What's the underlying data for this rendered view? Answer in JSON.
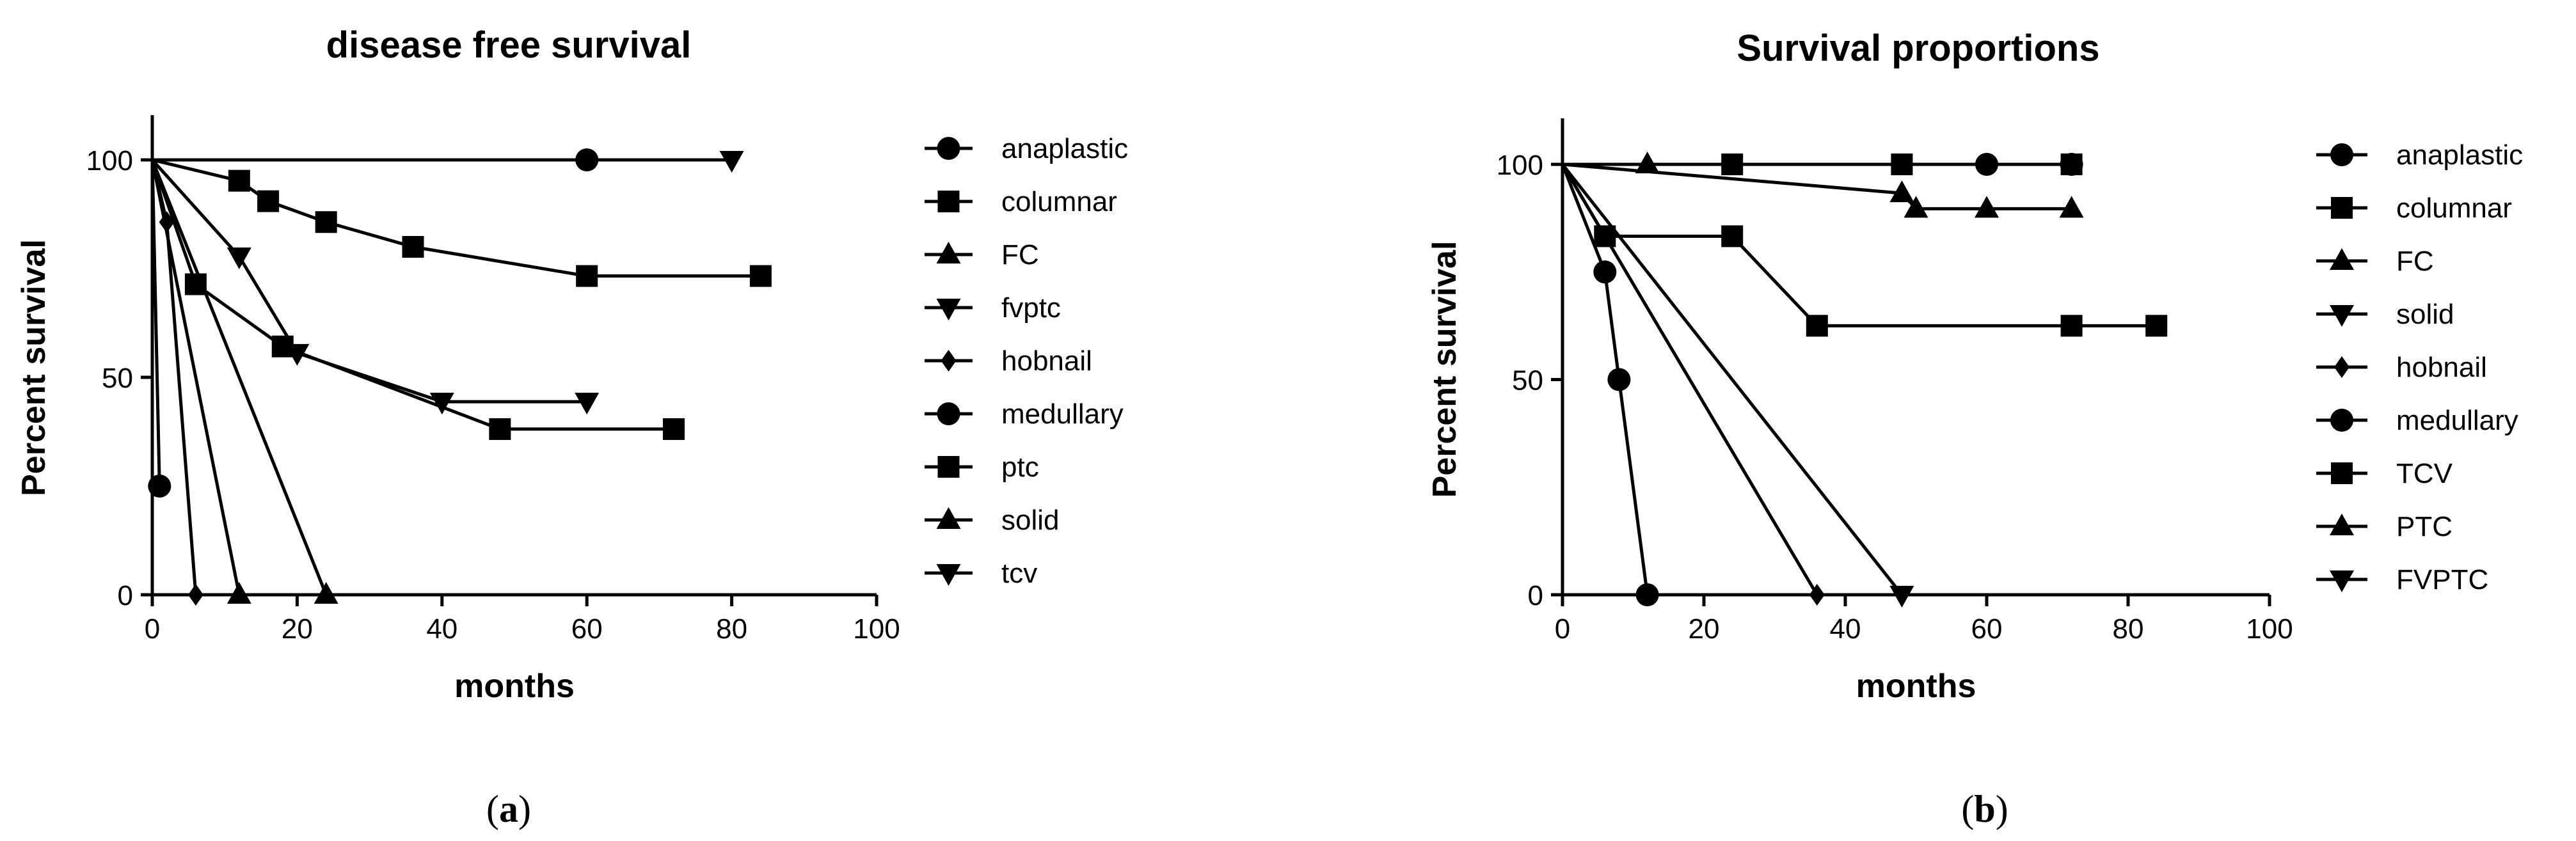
{
  "chart_data": [
    {
      "type": "line",
      "subtype": "kaplan-meier",
      "title": "disease free survival",
      "xlabel": "months",
      "ylabel": "Percent survival",
      "xlim": [
        0,
        100
      ],
      "ylim": [
        0,
        110
      ],
      "xticks": [
        0,
        20,
        40,
        60,
        80,
        100
      ],
      "yticks": [
        0,
        50,
        100
      ],
      "grid": false,
      "legend_position": "right",
      "caption": "a",
      "series": [
        {
          "name": "anaplastic",
          "marker": "circle",
          "x": [
            0,
            1
          ],
          "y": [
            100,
            25
          ]
        },
        {
          "name": "columnar",
          "marker": "square",
          "x": [
            0,
            6,
            18,
            48,
            72
          ],
          "y": [
            100,
            71.4,
            57.1,
            38.1,
            38.1
          ]
        },
        {
          "name": "FC",
          "marker": "triangle-up",
          "x": [
            0,
            12
          ],
          "y": [
            100,
            0
          ]
        },
        {
          "name": "fvptc",
          "marker": "triangle-down",
          "x": [
            0,
            12,
            20,
            40,
            60
          ],
          "y": [
            100,
            77.8,
            55.6,
            44.4,
            44.4
          ]
        },
        {
          "name": "hobnail",
          "marker": "diamond",
          "x": [
            0,
            2,
            6
          ],
          "y": [
            100,
            85.7,
            0
          ]
        },
        {
          "name": "medullary",
          "marker": "circle",
          "x": [
            0,
            60
          ],
          "y": [
            100,
            100
          ]
        },
        {
          "name": "ptc",
          "marker": "square",
          "x": [
            0,
            12,
            16,
            24,
            36,
            60,
            84
          ],
          "y": [
            100,
            95.2,
            90.5,
            85.7,
            80,
            73.3,
            73.3
          ]
        },
        {
          "name": "solid",
          "marker": "triangle-up",
          "x": [
            0,
            24
          ],
          "y": [
            100,
            0
          ]
        },
        {
          "name": "tcv",
          "marker": "triangle-down",
          "x": [
            0,
            80
          ],
          "y": [
            100,
            100
          ]
        }
      ]
    },
    {
      "type": "line",
      "subtype": "kaplan-meier",
      "title": "Survival proportions",
      "xlabel": "months",
      "ylabel": "Percent survival",
      "xlim": [
        0,
        100
      ],
      "ylim": [
        0,
        110
      ],
      "xticks": [
        0,
        20,
        40,
        60,
        80,
        100
      ],
      "yticks": [
        0,
        50,
        100
      ],
      "grid": false,
      "legend_position": "right",
      "caption": "b",
      "series": [
        {
          "name": "anaplastic",
          "marker": "circle",
          "x": [
            0,
            6,
            8,
            12
          ],
          "y": [
            100,
            75,
            50,
            0
          ]
        },
        {
          "name": "columnar",
          "marker": "square",
          "x": [
            0,
            6,
            24,
            36,
            72,
            84
          ],
          "y": [
            100,
            83.3,
            83.3,
            62.5,
            62.5,
            62.5
          ]
        },
        {
          "name": "FC",
          "marker": "triangle-up",
          "x": [
            0,
            12
          ],
          "y": [
            100,
            100
          ]
        },
        {
          "name": "solid",
          "marker": "triangle-down",
          "x": [
            0
          ],
          "y": [
            100
          ]
        },
        {
          "name": "hobnail",
          "marker": "diamond",
          "x": [
            0,
            36
          ],
          "y": [
            100,
            0
          ]
        },
        {
          "name": "medullary",
          "marker": "circle",
          "x": [
            0,
            60,
            72
          ],
          "y": [
            100,
            100,
            100
          ]
        },
        {
          "name": "TCV",
          "marker": "square",
          "x": [
            0,
            24,
            48,
            72
          ],
          "y": [
            100,
            100,
            100,
            100
          ]
        },
        {
          "name": "PTC",
          "marker": "triangle-up",
          "x": [
            0,
            48,
            50,
            60,
            72
          ],
          "y": [
            100,
            93.3,
            89.7,
            89.7,
            89.7
          ]
        },
        {
          "name": "FVPTC",
          "marker": "triangle-down",
          "x": [
            0,
            48
          ],
          "y": [
            100,
            0
          ]
        }
      ]
    }
  ]
}
